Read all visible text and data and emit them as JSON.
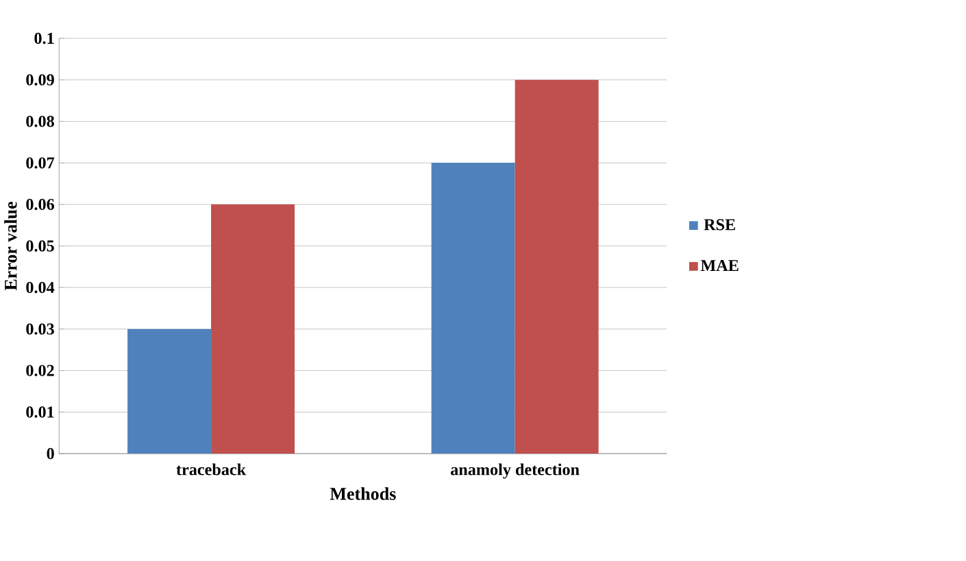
{
  "chart_data": {
    "type": "bar",
    "xlabel": "Methods",
    "ylabel": "Error value",
    "categories": [
      "traceback",
      "anamoly detection"
    ],
    "series": [
      {
        "name": "RSE",
        "color": "#4f81bd",
        "values": [
          0.03,
          0.07
        ]
      },
      {
        "name": "MAE",
        "color": "#c0504d",
        "values": [
          0.06,
          0.09
        ]
      }
    ],
    "ylim": [
      0,
      0.1
    ],
    "yticks": [
      0,
      0.01,
      0.02,
      0.03,
      0.04,
      0.05,
      0.06,
      0.07,
      0.08,
      0.09,
      0.1
    ],
    "grid": "y",
    "legend": "right"
  }
}
